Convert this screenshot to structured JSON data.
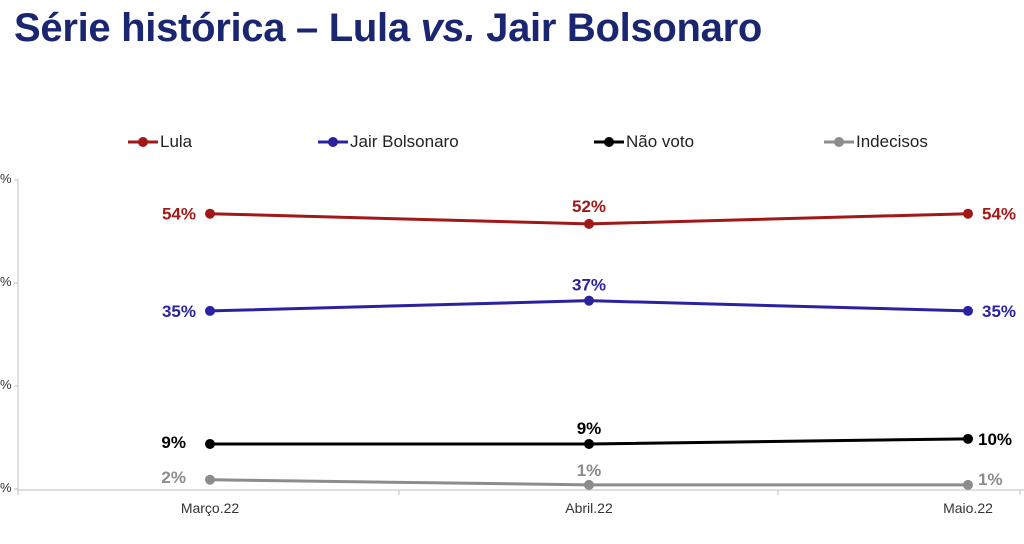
{
  "title": {
    "part1": "Série histórica – Lula ",
    "part2": "vs.",
    "part3": " Jair Bolsonaro"
  },
  "chart_data": {
    "type": "line",
    "categories": [
      "Março.22",
      "Abril.22",
      "Maio.22"
    ],
    "series": [
      {
        "name": "Lula",
        "color": "#a01818",
        "values": [
          54,
          52,
          54
        ],
        "labels": [
          "54%",
          "52%",
          "54%"
        ]
      },
      {
        "name": "Jair Bolsonaro",
        "color": "#2b22a0",
        "values": [
          35,
          37,
          35
        ],
        "labels": [
          "35%",
          "37%",
          "35%"
        ]
      },
      {
        "name": "Não voto",
        "color": "#000000",
        "values": [
          9,
          9,
          10
        ],
        "labels": [
          "9%",
          "9%",
          "10%"
        ]
      },
      {
        "name": "Indecisos",
        "color": "#8c8c8c",
        "values": [
          2,
          1,
          1
        ],
        "labels": [
          "2%",
          "1%",
          "1%"
        ]
      }
    ],
    "ylim": [
      0,
      60
    ],
    "yticks": [
      "%",
      "%",
      "%",
      "%"
    ],
    "legend_position": "top",
    "grid": false
  }
}
